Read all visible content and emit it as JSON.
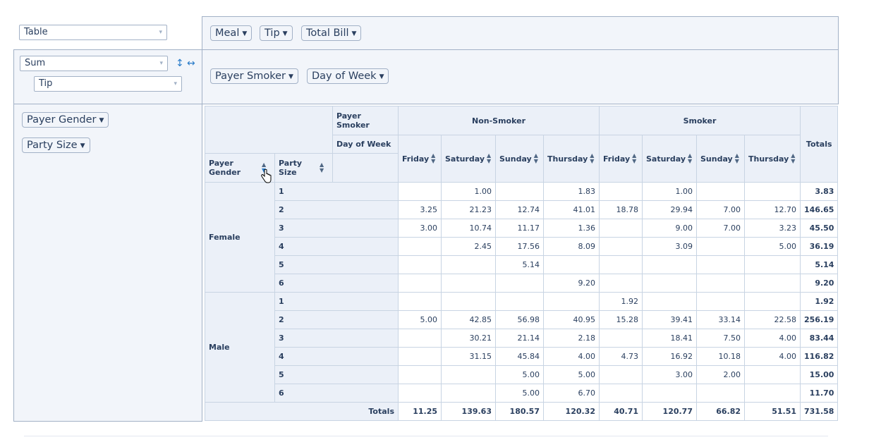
{
  "renderer_select": {
    "value": "Table"
  },
  "aggregator": {
    "value": "Sum",
    "attribute": "Tip"
  },
  "unused_attrs": [
    "Meal",
    "Tip",
    "Total Bill"
  ],
  "col_attrs": [
    "Payer Smoker",
    "Day of Week"
  ],
  "row_attrs": [
    "Payer Gender",
    "Party Size"
  ],
  "table": {
    "col_attr_labels": [
      "Payer Smoker",
      "Day of Week"
    ],
    "row_attr_labels": [
      "Payer Gender",
      "Party Size"
    ],
    "col_groups": [
      "Non-Smoker",
      "Smoker"
    ],
    "days": [
      "Friday",
      "Saturday",
      "Sunday",
      "Thursday",
      "Friday",
      "Saturday",
      "Sunday",
      "Thursday"
    ],
    "totals_label": "Totals",
    "female": "Female",
    "male": "Male",
    "rows": [
      {
        "gender": "Female",
        "size": "1",
        "cells": [
          "",
          "1.00",
          "",
          "1.83",
          "",
          "1.00",
          "",
          ""
        ],
        "total": "3.83"
      },
      {
        "gender": "Female",
        "size": "2",
        "cells": [
          "3.25",
          "21.23",
          "12.74",
          "41.01",
          "18.78",
          "29.94",
          "7.00",
          "12.70"
        ],
        "total": "146.65"
      },
      {
        "gender": "Female",
        "size": "3",
        "cells": [
          "3.00",
          "10.74",
          "11.17",
          "1.36",
          "",
          "9.00",
          "7.00",
          "3.23"
        ],
        "total": "45.50"
      },
      {
        "gender": "Female",
        "size": "4",
        "cells": [
          "",
          "2.45",
          "17.56",
          "8.09",
          "",
          "3.09",
          "",
          "5.00"
        ],
        "total": "36.19"
      },
      {
        "gender": "Female",
        "size": "5",
        "cells": [
          "",
          "",
          "5.14",
          "",
          "",
          "",
          "",
          ""
        ],
        "total": "5.14"
      },
      {
        "gender": "Female",
        "size": "6",
        "cells": [
          "",
          "",
          "",
          "9.20",
          "",
          "",
          "",
          ""
        ],
        "total": "9.20"
      },
      {
        "gender": "Male",
        "size": "1",
        "cells": [
          "",
          "",
          "",
          "",
          "1.92",
          "",
          "",
          ""
        ],
        "total": "1.92"
      },
      {
        "gender": "Male",
        "size": "2",
        "cells": [
          "5.00",
          "42.85",
          "56.98",
          "40.95",
          "15.28",
          "39.41",
          "33.14",
          "22.58"
        ],
        "total": "256.19"
      },
      {
        "gender": "Male",
        "size": "3",
        "cells": [
          "",
          "30.21",
          "21.14",
          "2.18",
          "",
          "18.41",
          "7.50",
          "4.00"
        ],
        "total": "83.44"
      },
      {
        "gender": "Male",
        "size": "4",
        "cells": [
          "",
          "31.15",
          "45.84",
          "4.00",
          "4.73",
          "16.92",
          "10.18",
          "4.00"
        ],
        "total": "116.82"
      },
      {
        "gender": "Male",
        "size": "5",
        "cells": [
          "",
          "",
          "5.00",
          "5.00",
          "",
          "3.00",
          "2.00",
          ""
        ],
        "total": "15.00"
      },
      {
        "gender": "Male",
        "size": "6",
        "cells": [
          "",
          "",
          "5.00",
          "6.70",
          "",
          "",
          "",
          ""
        ],
        "total": "11.70"
      }
    ],
    "col_totals": [
      "11.25",
      "139.63",
      "180.57",
      "120.32",
      "40.71",
      "120.77",
      "66.82",
      "51.51"
    ],
    "grand_total": "731.58"
  }
}
